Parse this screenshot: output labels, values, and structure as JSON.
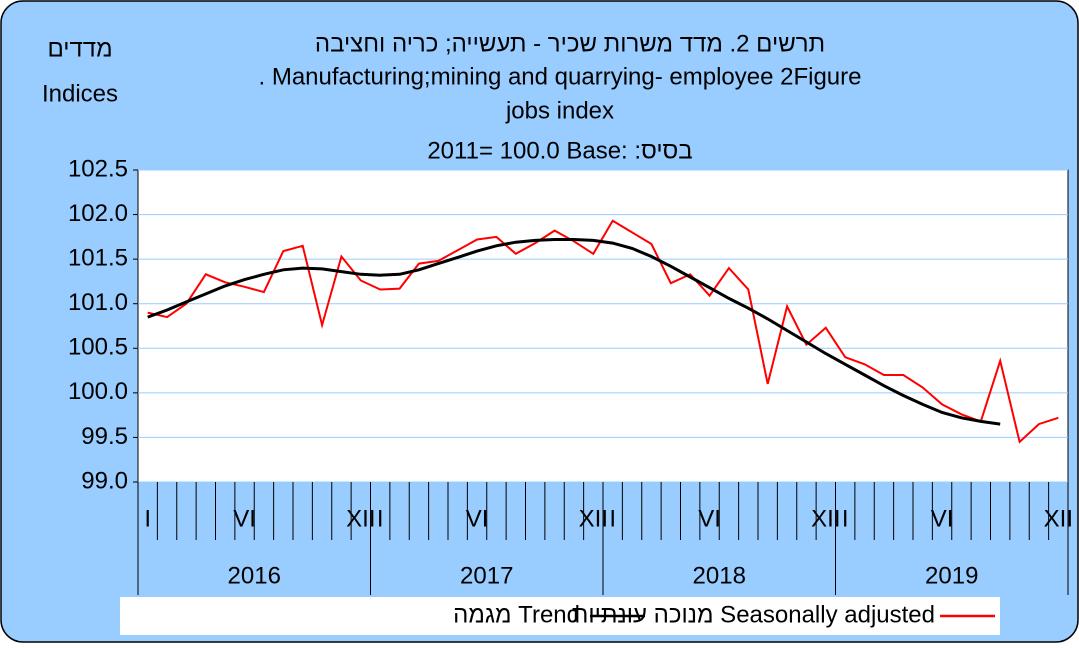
{
  "chart_data": {
    "type": "line",
    "title_he": "תרשים 2. מדד משרות שכיר - תעשייה; כריה וחציבה",
    "title_en_1": ". Manufacturing;mining and quarrying- employee 2Figure",
    "title_en_2": "jobs index",
    "subtitle": "2011= 100.0 Base:  :בסיס",
    "y_label_he": "מדדים",
    "y_label_en": "Indices",
    "categories": [
      "I",
      null,
      null,
      null,
      null,
      "VI",
      null,
      null,
      null,
      null,
      null,
      "XII",
      "I",
      null,
      null,
      null,
      null,
      "VI",
      null,
      null,
      null,
      null,
      null,
      "XII",
      "I",
      null,
      null,
      null,
      null,
      "VI",
      null,
      null,
      null,
      null,
      null,
      "XII",
      "I",
      null,
      null,
      null,
      null,
      "VI",
      null,
      null,
      null,
      null,
      null,
      "XII"
    ],
    "years": [
      "2016",
      "2017",
      "2018",
      "2019"
    ],
    "series": [
      {
        "name": "מנוכה עונתיות  Seasonally adjusted",
        "color": "#ff0000",
        "values": [
          100.9,
          100.85,
          101.0,
          101.33,
          101.24,
          101.19,
          101.13,
          101.59,
          101.65,
          100.76,
          101.53,
          101.26,
          101.16,
          101.17,
          101.45,
          101.48,
          101.6,
          101.72,
          101.75,
          101.56,
          101.68,
          101.82,
          101.7,
          101.56,
          101.93,
          101.8,
          101.67,
          101.23,
          101.33,
          101.09,
          101.4,
          101.16,
          100.1,
          100.97,
          100.54,
          100.73,
          100.4,
          100.32,
          100.2,
          100.2,
          100.06,
          99.87,
          99.76,
          99.68,
          100.36,
          99.45,
          99.65,
          99.72
        ]
      },
      {
        "name": "מגמה  Trend",
        "color": "#000000",
        "values": [
          100.85,
          100.93,
          101.02,
          101.11,
          101.2,
          101.27,
          101.33,
          101.38,
          101.4,
          101.39,
          101.36,
          101.33,
          101.32,
          101.33,
          101.38,
          101.45,
          101.52,
          101.59,
          101.65,
          101.69,
          101.71,
          101.72,
          101.72,
          101.71,
          101.68,
          101.62,
          101.53,
          101.42,
          101.3,
          101.18,
          101.06,
          100.95,
          100.83,
          100.7,
          100.57,
          100.44,
          100.32,
          100.2,
          100.08,
          99.97,
          99.87,
          99.78,
          99.72,
          99.68,
          99.65,
          null,
          null,
          null
        ]
      }
    ],
    "ylim": [
      99.0,
      102.5
    ],
    "yticks": [
      {
        "value": 99,
        "label": "99.0"
      },
      99.5,
      {
        "value": 100,
        "label": "100.0"
      },
      100.5,
      {
        "value": 101,
        "label": "101.0"
      },
      101.5,
      {
        "value": 102,
        "label": "102.0"
      },
      102.5
    ],
    "grid": true
  }
}
